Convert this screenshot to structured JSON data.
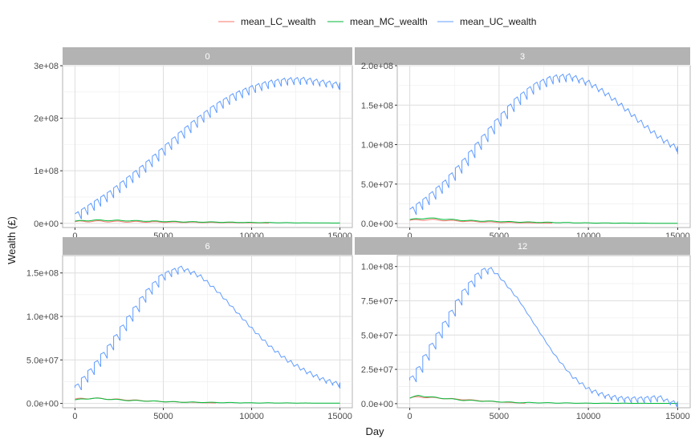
{
  "chart_data": {
    "type": "line",
    "title": "",
    "xlabel": "Day",
    "ylabel": "Wealth (£)",
    "legend_position": "top",
    "series_legend": [
      {
        "name": "mean_LC_wealth",
        "color": "#F8766D"
      },
      {
        "name": "mean_MC_wealth",
        "color": "#00BA38"
      },
      {
        "name": "mean_UC_wealth",
        "color": "#619CFF"
      }
    ],
    "grid": true,
    "facet_strip_color": "#b3b3b3",
    "x_ticks": [
      0,
      5000,
      10000,
      15000
    ],
    "x_tick_labels": [
      "0",
      "5000",
      "10000",
      "15000"
    ],
    "xlim": [
      -700,
      15700
    ],
    "panels": [
      {
        "strip": "0",
        "ylim": [
          -8000000,
          300000000
        ],
        "y_ticks": [
          0,
          100000000,
          200000000,
          300000000
        ],
        "y_tick_labels": [
          "0e+00",
          "1e+08",
          "2e+08",
          "3e+08"
        ],
        "uc_profile": {
          "x": [
            0,
            1000,
            2000,
            3000,
            4000,
            5000,
            6000,
            7000,
            8000,
            9000,
            10000,
            11000,
            12000,
            13000,
            14000,
            15000
          ],
          "y": [
            18000000,
            40000000,
            62000000,
            88000000,
            115000000,
            145000000,
            175000000,
            203000000,
            228000000,
            248000000,
            262000000,
            272000000,
            277000000,
            278000000,
            273000000,
            268000000
          ]
        },
        "uc_sawtooth_drop": 28000000,
        "lc_profile": {
          "x": [
            0,
            1000,
            3000,
            6000,
            10000,
            11000
          ],
          "y": [
            3000000,
            4000000,
            3000000,
            2000000,
            1000000,
            500000
          ]
        },
        "mc_profile": {
          "x": [
            0,
            1000,
            3000,
            6000,
            10000,
            15000
          ],
          "y": [
            4000000,
            6000000,
            5000000,
            3000000,
            1500000,
            500000
          ]
        }
      },
      {
        "strip": "3",
        "ylim": [
          -5000000,
          200000000
        ],
        "y_ticks": [
          0,
          50000000,
          100000000,
          150000000,
          200000000
        ],
        "y_tick_labels": [
          "0.0e+00",
          "5.0e+07",
          "1.0e+08",
          "1.5e+08",
          "2.0e+08"
        ],
        "uc_profile": {
          "x": [
            0,
            1000,
            2000,
            3000,
            4000,
            5000,
            6000,
            7000,
            8000,
            9000,
            10000,
            11000,
            12000,
            13000,
            14000,
            15000
          ],
          "y": [
            18000000,
            35000000,
            55000000,
            80000000,
            108000000,
            135000000,
            160000000,
            178000000,
            188000000,
            190000000,
            182000000,
            168000000,
            150000000,
            130000000,
            112000000,
            98000000
          ]
        },
        "uc_sawtooth_drop": 20000000,
        "lc_profile": {
          "x": [
            0,
            1000,
            3000,
            5000,
            8000
          ],
          "y": [
            4000000,
            5000000,
            3000000,
            1500000,
            500000
          ]
        },
        "mc_profile": {
          "x": [
            0,
            1000,
            3000,
            6000,
            10000,
            15000
          ],
          "y": [
            5000000,
            7000000,
            4000000,
            2000000,
            800000,
            300000
          ]
        }
      },
      {
        "strip": "6",
        "ylim": [
          -5000000,
          170000000
        ],
        "y_ticks": [
          0,
          50000000,
          100000000,
          150000000
        ],
        "y_tick_labels": [
          "0.0e+00",
          "5.0e+07",
          "1.0e+08",
          "1.5e+08"
        ],
        "uc_profile": {
          "x": [
            0,
            1000,
            2000,
            3000,
            4000,
            5000,
            6000,
            7000,
            8000,
            9000,
            10000,
            11000,
            12000,
            13000,
            14000,
            15000
          ],
          "y": [
            18000000,
            42000000,
            68000000,
            98000000,
            128000000,
            150000000,
            158000000,
            150000000,
            132000000,
            110000000,
            88000000,
            68000000,
            52000000,
            40000000,
            30000000,
            24000000
          ]
        },
        "uc_sawtooth_drop": 14000000,
        "lc_profile": {
          "x": [
            0,
            1000,
            3000,
            5000,
            8000
          ],
          "y": [
            5000000,
            6000000,
            4000000,
            2000000,
            500000
          ]
        },
        "mc_profile": {
          "x": [
            0,
            1000,
            3000,
            6000,
            10000,
            15000
          ],
          "y": [
            4000000,
            6000000,
            3500000,
            1500000,
            600000,
            300000
          ]
        }
      },
      {
        "strip": "12",
        "ylim": [
          -3000000,
          108000000
        ],
        "y_ticks": [
          0,
          25000000,
          50000000,
          75000000,
          100000000
        ],
        "y_tick_labels": [
          "0.0e+00",
          "2.5e+07",
          "5.0e+07",
          "7.5e+07",
          "1.0e+08"
        ],
        "uc_profile": {
          "x": [
            0,
            500,
            1000,
            2000,
            3000,
            4000,
            4500,
            5000,
            6000,
            7000,
            8000,
            9000,
            10000,
            11000,
            12000,
            13000,
            14000,
            14500,
            15000
          ],
          "y": [
            17000000,
            26000000,
            38000000,
            60000000,
            82000000,
            98000000,
            100000000,
            94000000,
            78000000,
            58000000,
            38000000,
            22000000,
            12000000,
            7000000,
            5000000,
            5000000,
            6000000,
            3000000,
            1500000
          ]
        },
        "uc_sawtooth_drop": 9000000,
        "lc_profile": {
          "x": [
            0,
            500,
            1000,
            3000,
            5000,
            6500
          ],
          "y": [
            4000000,
            5000000,
            4500000,
            3000000,
            1200000,
            300000
          ]
        },
        "mc_profile": {
          "x": [
            0,
            500,
            1000,
            3000,
            6000,
            10000,
            15000
          ],
          "y": [
            4000000,
            6000000,
            5000000,
            2500000,
            800000,
            300000,
            200000
          ]
        }
      }
    ]
  }
}
